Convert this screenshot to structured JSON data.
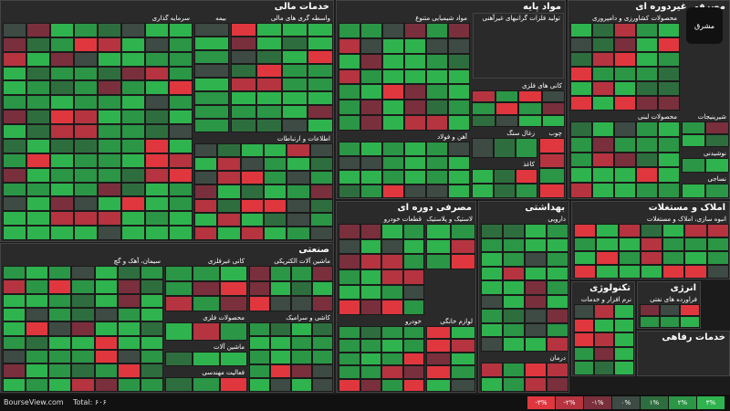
{
  "sectors": [
    {
      "name": "خدمات مالی",
      "subs": [
        "سرمایه گذاری",
        "بیمه",
        "واسطه گری های مالی",
        "اطلاعات و ارتباطات"
      ]
    },
    {
      "name": "صنعتی",
      "subs": [
        "سیمان، آهک و گچ",
        "کانی غیرفلزی",
        "محصولات فلزی",
        "ماشین آلات الکتریکی",
        "ماشین آلات",
        "فعالیت مهندسی",
        "کاشی و سرامیک"
      ]
    },
    {
      "name": "مواد پایه",
      "subs": [
        "مواد شیمیایی متنوع",
        "آهن و فولاد",
        "کانی های فلزی",
        "زغال سنگ",
        "چوب",
        "کاغذ"
      ]
    },
    {
      "name": "مصرفی غیردوره ای",
      "subs": [
        "محصولات کشاورزی و دامپروری",
        "تولید فلزات گرانبهای غیرآهنی",
        "شیرینیجات",
        "محصولات لبنی",
        "نوشیدنی",
        "نساجی"
      ]
    },
    {
      "name": "مصرفی دوره ای",
      "subs": [
        "قطعات خودرو",
        "لاستیک و پلاستیک",
        "خودرو",
        "لوازم خانگی"
      ]
    },
    {
      "name": "بهداشتی",
      "subs": [
        "دارویی",
        "درمان"
      ]
    },
    {
      "name": "املاک و مستغلات",
      "subs": [
        "انبوه سازی، املاک و مستغلات"
      ]
    },
    {
      "name": "تکنولوژی",
      "subs": [
        "نرم افزار و خدمات"
      ]
    },
    {
      "name": "انرژی",
      "subs": [
        "فراورده های نفتی"
      ]
    },
    {
      "name": "خدمات رفاهی",
      "subs": []
    }
  ],
  "footer": {
    "site": "BourseView.com",
    "total": "Total: ۶۰۶"
  },
  "legend": [
    "-۳%",
    "-۲%",
    "-۱%",
    "۰%",
    "۱%",
    "۲%",
    "۳%"
  ],
  "legend_colors": [
    "#e0373f",
    "#b53440",
    "#7a2f3c",
    "#3e4a44",
    "#2e6e3e",
    "#2a9646",
    "#2fb34e"
  ],
  "logo": "مشرق"
}
